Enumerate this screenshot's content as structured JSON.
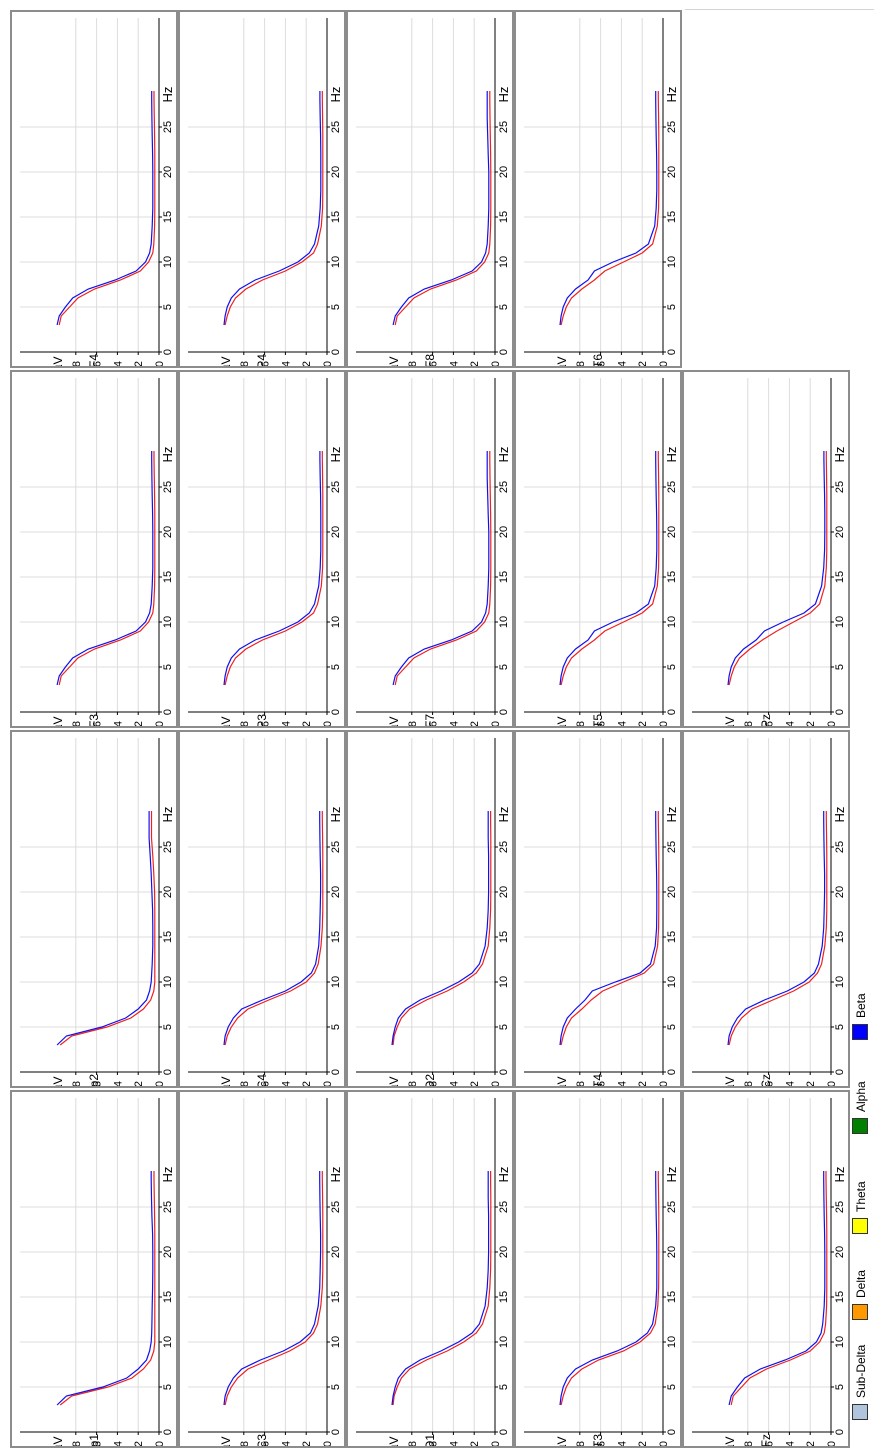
{
  "axis": {
    "y_label": "µV",
    "x_label": "Hz",
    "y_ticks": [
      "0",
      "2",
      "4",
      "6",
      "8"
    ],
    "x_ticks": [
      "0",
      "5",
      "10",
      "15",
      "20",
      "25"
    ],
    "ylim": [
      0,
      10
    ],
    "xlim": [
      0,
      30
    ]
  },
  "series_colors": {
    "blue": "#1010ee",
    "red": "#ee2020"
  },
  "legend": [
    {
      "label": "Sub-Delta",
      "color": "#b0c4de"
    },
    {
      "label": "Delta",
      "color": "#ff9900"
    },
    {
      "label": "Theta",
      "color": "#ffff00"
    },
    {
      "label": "Alpha",
      "color": "#008000"
    },
    {
      "label": "Beta",
      "color": "#0000ff"
    }
  ],
  "chart_data": {
    "type": "line",
    "x": [
      3,
      4,
      5,
      6,
      7,
      8,
      9,
      10,
      11,
      12,
      14,
      16,
      18,
      20,
      22,
      24,
      26,
      28,
      29
    ],
    "panels": [
      {
        "label": "Fp1",
        "blue": [
          9.8,
          8.9,
          5.4,
          3.1,
          2.0,
          1.2,
          0.9,
          0.75,
          0.7,
          0.68,
          0.65,
          0.62,
          0.6,
          0.6,
          0.62,
          0.68,
          0.72,
          0.75,
          0.75
        ],
        "red": [
          9.5,
          8.4,
          4.9,
          2.6,
          1.5,
          0.8,
          0.5,
          0.4,
          0.4,
          0.4,
          0.4,
          0.4,
          0.4,
          0.4,
          0.4,
          0.42,
          0.45,
          0.48,
          0.48
        ]
      },
      {
        "label": "Fp2",
        "blue": [
          9.8,
          8.9,
          5.5,
          3.2,
          2.0,
          1.2,
          0.9,
          0.75,
          0.7,
          0.65,
          0.6,
          0.6,
          0.62,
          0.68,
          0.75,
          0.85,
          0.95,
          0.95,
          0.95
        ],
        "red": [
          9.5,
          8.4,
          5.0,
          2.7,
          1.5,
          0.8,
          0.5,
          0.4,
          0.4,
          0.4,
          0.4,
          0.4,
          0.4,
          0.42,
          0.5,
          0.6,
          0.72,
          0.72,
          0.72
        ]
      },
      {
        "label": "F3",
        "blue": [
          9.8,
          9.6,
          9.0,
          8.3,
          6.8,
          4.2,
          2.2,
          1.3,
          0.9,
          0.75,
          0.65,
          0.6,
          0.6,
          0.6,
          0.62,
          0.65,
          0.68,
          0.7,
          0.7
        ],
        "red": [
          9.6,
          9.4,
          8.6,
          7.8,
          6.2,
          3.7,
          1.8,
          1.0,
          0.6,
          0.5,
          0.42,
          0.4,
          0.4,
          0.4,
          0.4,
          0.42,
          0.45,
          0.48,
          0.48
        ]
      },
      {
        "label": "F4",
        "blue": [
          9.8,
          9.6,
          9.0,
          8.3,
          6.8,
          4.2,
          2.2,
          1.3,
          0.9,
          0.75,
          0.65,
          0.6,
          0.6,
          0.6,
          0.62,
          0.65,
          0.68,
          0.7,
          0.7
        ],
        "red": [
          9.6,
          9.4,
          8.6,
          7.8,
          6.2,
          3.7,
          1.8,
          1.0,
          0.6,
          0.5,
          0.42,
          0.4,
          0.4,
          0.4,
          0.4,
          0.42,
          0.45,
          0.48,
          0.48
        ]
      },
      {
        "label": "C3",
        "blue": [
          9.9,
          9.8,
          9.5,
          9.0,
          8.2,
          6.4,
          4.2,
          2.6,
          1.6,
          1.2,
          0.85,
          0.7,
          0.65,
          0.62,
          0.62,
          0.65,
          0.68,
          0.7,
          0.7
        ],
        "red": [
          9.8,
          9.6,
          9.2,
          8.6,
          7.6,
          5.6,
          3.6,
          2.1,
          1.3,
          0.9,
          0.6,
          0.45,
          0.4,
          0.4,
          0.4,
          0.4,
          0.42,
          0.45,
          0.45
        ]
      },
      {
        "label": "C4",
        "blue": [
          9.9,
          9.8,
          9.5,
          9.0,
          8.2,
          6.2,
          4.0,
          2.5,
          1.5,
          1.1,
          0.8,
          0.7,
          0.65,
          0.62,
          0.62,
          0.65,
          0.68,
          0.7,
          0.7
        ],
        "red": [
          9.8,
          9.6,
          9.2,
          8.6,
          7.6,
          5.6,
          3.5,
          2.0,
          1.2,
          0.85,
          0.58,
          0.45,
          0.4,
          0.4,
          0.4,
          0.4,
          0.42,
          0.45,
          0.45
        ]
      },
      {
        "label": "P3",
        "blue": [
          9.9,
          9.8,
          9.6,
          9.2,
          8.4,
          6.9,
          4.6,
          2.8,
          1.7,
          1.2,
          0.8,
          0.65,
          0.6,
          0.6,
          0.6,
          0.62,
          0.65,
          0.68,
          0.68
        ],
        "red": [
          9.8,
          9.6,
          9.3,
          8.8,
          7.8,
          6.2,
          4.0,
          2.4,
          1.3,
          0.9,
          0.55,
          0.42,
          0.4,
          0.4,
          0.4,
          0.4,
          0.42,
          0.45,
          0.45
        ]
      },
      {
        "label": "P4",
        "blue": [
          9.9,
          9.8,
          9.6,
          9.2,
          8.4,
          6.9,
          4.6,
          2.8,
          1.7,
          1.2,
          0.8,
          0.65,
          0.6,
          0.6,
          0.6,
          0.62,
          0.65,
          0.68,
          0.68
        ],
        "red": [
          9.8,
          9.6,
          9.3,
          8.8,
          7.8,
          6.2,
          4.0,
          2.4,
          1.3,
          0.9,
          0.55,
          0.42,
          0.4,
          0.4,
          0.4,
          0.4,
          0.42,
          0.45,
          0.45
        ]
      },
      {
        "label": "O1",
        "blue": [
          9.9,
          9.8,
          9.6,
          9.3,
          8.6,
          7.2,
          5.2,
          3.5,
          2.2,
          1.5,
          0.95,
          0.75,
          0.65,
          0.62,
          0.62,
          0.62,
          0.65,
          0.65,
          0.65
        ],
        "red": [
          9.8,
          9.7,
          9.4,
          9.0,
          8.2,
          6.6,
          4.6,
          3.0,
          1.8,
          1.2,
          0.65,
          0.5,
          0.42,
          0.4,
          0.4,
          0.4,
          0.4,
          0.42,
          0.42
        ]
      },
      {
        "label": "O2",
        "blue": [
          9.9,
          9.8,
          9.6,
          9.3,
          8.6,
          7.2,
          5.2,
          3.5,
          2.2,
          1.5,
          0.95,
          0.75,
          0.65,
          0.62,
          0.62,
          0.62,
          0.65,
          0.65,
          0.65
        ],
        "red": [
          9.8,
          9.7,
          9.4,
          9.0,
          8.2,
          6.6,
          4.6,
          3.0,
          1.8,
          1.2,
          0.65,
          0.5,
          0.42,
          0.4,
          0.4,
          0.4,
          0.4,
          0.42,
          0.42
        ]
      },
      {
        "label": "F7",
        "blue": [
          9.8,
          9.6,
          9.0,
          8.3,
          6.8,
          4.2,
          2.2,
          1.3,
          0.9,
          0.75,
          0.65,
          0.6,
          0.6,
          0.6,
          0.65,
          0.7,
          0.75,
          0.75,
          0.75
        ],
        "red": [
          9.6,
          9.4,
          8.6,
          7.8,
          6.2,
          3.7,
          1.8,
          1.0,
          0.6,
          0.5,
          0.42,
          0.4,
          0.4,
          0.4,
          0.42,
          0.45,
          0.48,
          0.5,
          0.5
        ]
      },
      {
        "label": "F8",
        "blue": [
          9.8,
          9.6,
          9.0,
          8.3,
          6.8,
          4.2,
          2.2,
          1.3,
          0.9,
          0.75,
          0.65,
          0.6,
          0.6,
          0.6,
          0.65,
          0.7,
          0.75,
          0.75,
          0.75
        ],
        "red": [
          9.6,
          9.4,
          8.6,
          7.8,
          6.2,
          3.7,
          1.8,
          1.0,
          0.6,
          0.5,
          0.42,
          0.4,
          0.4,
          0.4,
          0.42,
          0.45,
          0.48,
          0.5,
          0.5
        ]
      },
      {
        "label": "T3",
        "blue": [
          9.9,
          9.8,
          9.6,
          9.2,
          8.4,
          6.8,
          4.4,
          2.6,
          1.5,
          1.0,
          0.7,
          0.6,
          0.6,
          0.6,
          0.62,
          0.65,
          0.68,
          0.7,
          0.7
        ],
        "red": [
          9.8,
          9.6,
          9.3,
          8.8,
          7.8,
          6.2,
          3.8,
          2.2,
          1.2,
          0.75,
          0.5,
          0.42,
          0.4,
          0.4,
          0.4,
          0.4,
          0.42,
          0.45,
          0.45
        ]
      },
      {
        "label": "T4",
        "blue": [
          9.9,
          9.8,
          9.6,
          9.2,
          8.4,
          7.5,
          6.8,
          4.6,
          2.2,
          1.2,
          0.75,
          0.62,
          0.6,
          0.6,
          0.62,
          0.65,
          0.68,
          0.7,
          0.7
        ],
        "red": [
          9.8,
          9.6,
          9.3,
          8.8,
          7.8,
          6.9,
          5.8,
          3.8,
          1.8,
          0.9,
          0.52,
          0.42,
          0.4,
          0.4,
          0.4,
          0.4,
          0.42,
          0.45,
          0.45
        ]
      },
      {
        "label": "T5",
        "blue": [
          9.9,
          9.8,
          9.6,
          9.2,
          8.4,
          7.2,
          6.6,
          4.8,
          2.6,
          1.4,
          0.8,
          0.65,
          0.6,
          0.6,
          0.62,
          0.65,
          0.68,
          0.7,
          0.7
        ],
        "red": [
          9.8,
          9.6,
          9.3,
          8.8,
          7.8,
          6.6,
          5.6,
          3.8,
          2.0,
          1.0,
          0.55,
          0.42,
          0.4,
          0.4,
          0.4,
          0.4,
          0.42,
          0.45,
          0.45
        ]
      },
      {
        "label": "T6",
        "blue": [
          9.9,
          9.8,
          9.6,
          9.2,
          8.4,
          7.2,
          6.6,
          4.8,
          2.6,
          1.4,
          0.8,
          0.65,
          0.6,
          0.6,
          0.62,
          0.65,
          0.68,
          0.7,
          0.7
        ],
        "red": [
          9.8,
          9.6,
          9.3,
          8.8,
          7.8,
          6.6,
          5.6,
          3.8,
          2.0,
          1.0,
          0.55,
          0.42,
          0.4,
          0.4,
          0.4,
          0.4,
          0.42,
          0.45,
          0.45
        ]
      },
      {
        "label": "Fz",
        "blue": [
          9.8,
          9.6,
          9.0,
          8.3,
          6.8,
          4.4,
          2.4,
          1.4,
          0.95,
          0.8,
          0.65,
          0.6,
          0.6,
          0.6,
          0.62,
          0.65,
          0.68,
          0.7,
          0.7
        ],
        "red": [
          9.6,
          9.4,
          8.6,
          7.8,
          6.2,
          3.9,
          2.0,
          1.1,
          0.65,
          0.52,
          0.42,
          0.4,
          0.4,
          0.4,
          0.4,
          0.42,
          0.45,
          0.48,
          0.48
        ]
      },
      {
        "label": "Cz",
        "blue": [
          9.9,
          9.8,
          9.5,
          9.0,
          8.2,
          6.4,
          4.2,
          2.6,
          1.6,
          1.2,
          0.85,
          0.7,
          0.65,
          0.62,
          0.62,
          0.65,
          0.68,
          0.7,
          0.7
        ],
        "red": [
          9.8,
          9.6,
          9.2,
          8.6,
          7.6,
          5.6,
          3.6,
          2.1,
          1.3,
          0.9,
          0.6,
          0.45,
          0.4,
          0.4,
          0.4,
          0.4,
          0.42,
          0.45,
          0.45
        ]
      },
      {
        "label": "Pz",
        "blue": [
          9.9,
          9.8,
          9.6,
          9.2,
          8.4,
          7.2,
          6.4,
          4.6,
          2.6,
          1.5,
          0.9,
          0.7,
          0.62,
          0.6,
          0.6,
          0.62,
          0.65,
          0.68,
          0.68
        ],
        "red": [
          9.8,
          9.6,
          9.3,
          8.8,
          7.8,
          6.6,
          5.2,
          3.6,
          2.0,
          1.1,
          0.6,
          0.45,
          0.4,
          0.4,
          0.4,
          0.4,
          0.42,
          0.45,
          0.45
        ]
      }
    ]
  }
}
